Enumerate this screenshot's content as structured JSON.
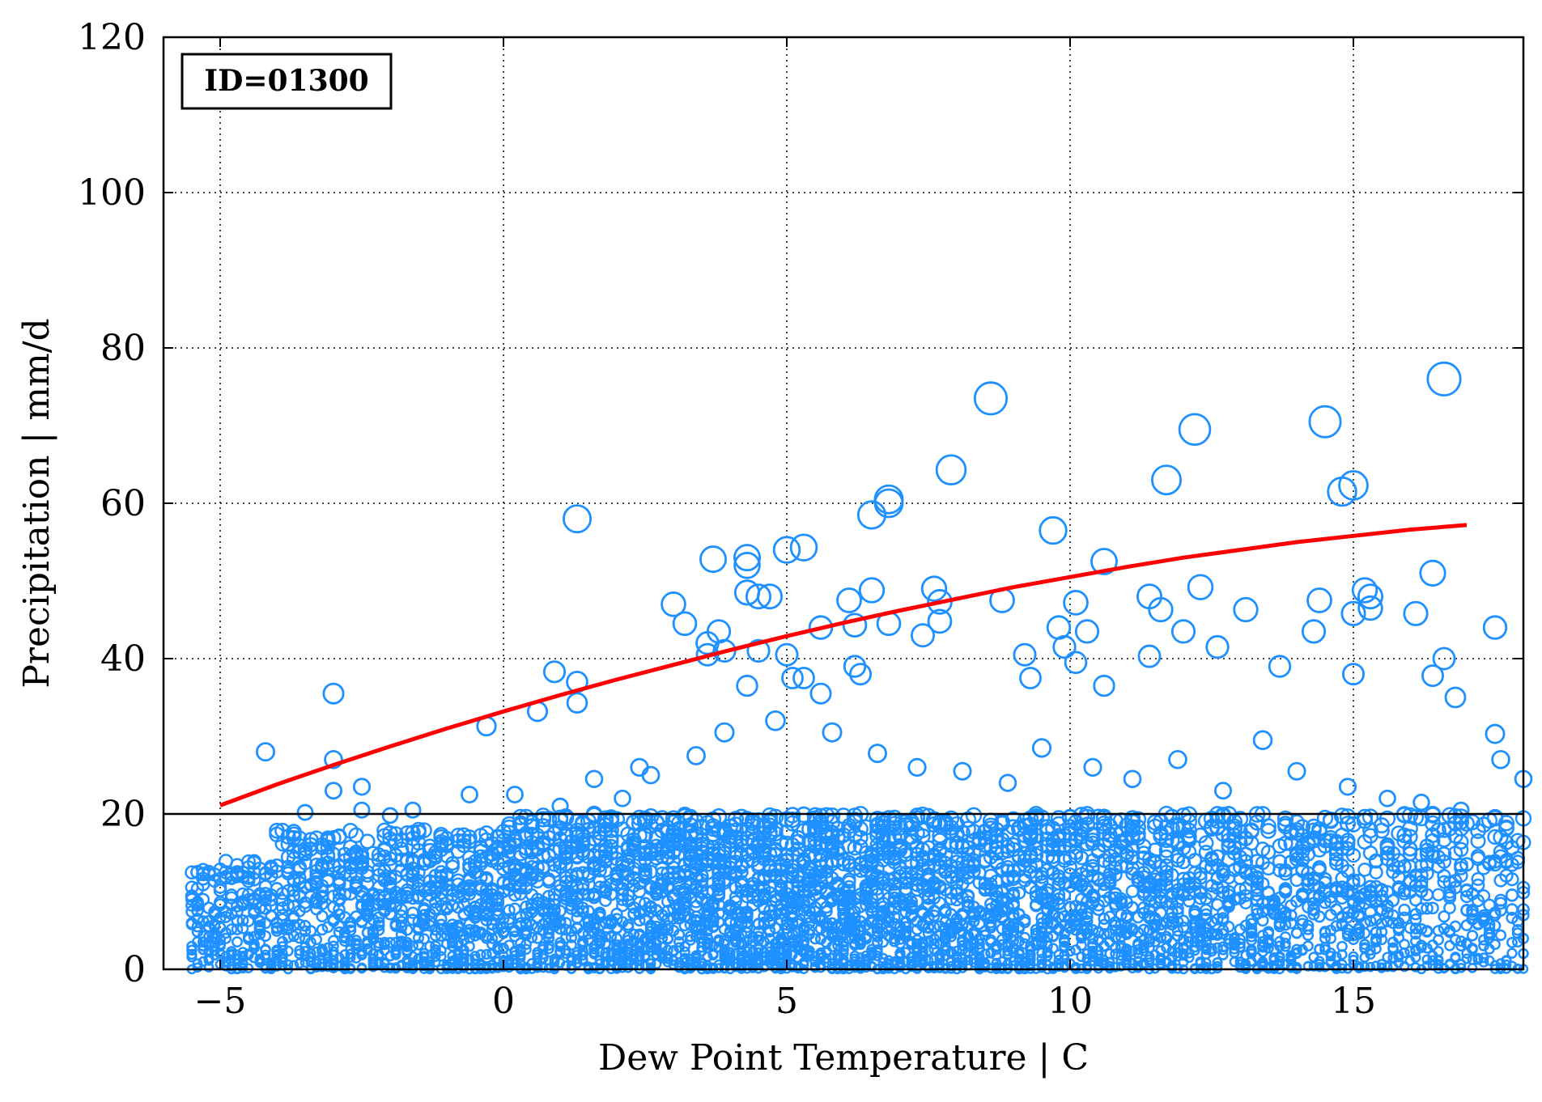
{
  "chart_data": {
    "type": "scatter",
    "title": "",
    "xlabel": "Dew Point Temperature | C",
    "ylabel": "Precipitation | mm/d",
    "xlim": [
      -6,
      18
    ],
    "ylim": [
      0,
      120
    ],
    "xticks": [
      -5,
      0,
      5,
      10,
      15
    ],
    "xtick_labels": [
      "−5",
      "0",
      "5",
      "10",
      "15"
    ],
    "yticks": [
      0,
      20,
      40,
      60,
      80,
      100,
      120
    ],
    "ytick_labels": [
      "0",
      "20",
      "40",
      "60",
      "80",
      "100",
      "120"
    ],
    "grid": true,
    "grid_style": "dotted",
    "annotation": "ID=01300",
    "annotation_position": "top-left",
    "threshold_line": {
      "y": 20,
      "color": "#000000"
    },
    "colors": {
      "points": "#1e90ff",
      "fit": "#ff0000",
      "threshold": "#000000"
    },
    "marker": "open-circle",
    "marker_size_scales_with_value": true,
    "series": [
      {
        "points": [
          [
            -3.0,
            35.5
          ],
          [
            -4.2,
            28.0
          ],
          [
            -3.0,
            27.0
          ],
          [
            -2.5,
            23.5
          ],
          [
            -3.0,
            23.0
          ],
          [
            -2.5,
            20.5
          ],
          [
            -3.5,
            20.2
          ],
          [
            -0.3,
            31.3
          ],
          [
            1.3,
            58.0
          ],
          [
            0.9,
            38.3
          ],
          [
            1.3,
            37.0
          ],
          [
            1.3,
            34.3
          ],
          [
            0.6,
            33.2
          ],
          [
            3.0,
            47.0
          ],
          [
            3.2,
            44.5
          ],
          [
            3.7,
            52.8
          ],
          [
            3.8,
            43.5
          ],
          [
            3.6,
            42.0
          ],
          [
            3.6,
            40.5
          ],
          [
            3.9,
            41.0
          ],
          [
            4.3,
            53.0
          ],
          [
            4.3,
            52.0
          ],
          [
            4.3,
            48.5
          ],
          [
            4.5,
            48.0
          ],
          [
            4.7,
            48.0
          ],
          [
            4.5,
            41.0
          ],
          [
            4.3,
            36.5
          ],
          [
            5.0,
            54.0
          ],
          [
            5.3,
            54.3
          ],
          [
            5.0,
            40.5
          ],
          [
            5.1,
            37.5
          ],
          [
            5.3,
            37.5
          ],
          [
            5.6,
            35.5
          ],
          [
            5.6,
            44.0
          ],
          [
            6.1,
            47.5
          ],
          [
            6.2,
            44.3
          ],
          [
            6.5,
            48.8
          ],
          [
            6.5,
            58.5
          ],
          [
            6.8,
            60.5
          ],
          [
            6.8,
            60.0
          ],
          [
            6.8,
            44.5
          ],
          [
            6.2,
            39.0
          ],
          [
            6.3,
            38.0
          ],
          [
            7.4,
            43.0
          ],
          [
            7.6,
            49.0
          ],
          [
            7.7,
            47.3
          ],
          [
            7.7,
            44.8
          ],
          [
            7.9,
            64.3
          ],
          [
            8.6,
            73.5
          ],
          [
            8.8,
            47.5
          ],
          [
            9.2,
            40.5
          ],
          [
            9.3,
            37.5
          ],
          [
            9.7,
            56.5
          ],
          [
            9.8,
            44.0
          ],
          [
            9.9,
            41.5
          ],
          [
            10.1,
            47.2
          ],
          [
            10.3,
            43.5
          ],
          [
            10.1,
            39.5
          ],
          [
            10.6,
            52.5
          ],
          [
            10.6,
            36.5
          ],
          [
            11.4,
            48.0
          ],
          [
            11.6,
            46.3
          ],
          [
            11.4,
            40.3
          ],
          [
            11.7,
            63.0
          ],
          [
            12.2,
            69.5
          ],
          [
            12.0,
            43.5
          ],
          [
            12.3,
            49.2
          ],
          [
            12.6,
            41.5
          ],
          [
            13.1,
            46.3
          ],
          [
            13.7,
            39.0
          ],
          [
            14.3,
            43.5
          ],
          [
            14.4,
            47.5
          ],
          [
            14.5,
            70.5
          ],
          [
            14.8,
            61.5
          ],
          [
            15.0,
            62.3
          ],
          [
            15.2,
            48.8
          ],
          [
            15.3,
            48.0
          ],
          [
            15.3,
            46.5
          ],
          [
            15.0,
            45.8
          ],
          [
            15.0,
            38.0
          ],
          [
            16.1,
            45.8
          ],
          [
            16.4,
            51.0
          ],
          [
            16.6,
            76.0
          ],
          [
            16.6,
            40.0
          ],
          [
            16.4,
            37.8
          ],
          [
            16.8,
            35.0
          ],
          [
            17.5,
            44.0
          ],
          [
            17.5,
            30.3
          ],
          [
            17.6,
            27.0
          ],
          [
            18.0,
            24.5
          ],
          [
            2.1,
            22.0
          ],
          [
            2.6,
            25.0
          ],
          [
            3.4,
            27.5
          ],
          [
            3.9,
            30.5
          ],
          [
            4.8,
            32.0
          ],
          [
            5.8,
            30.5
          ],
          [
            6.6,
            27.8
          ],
          [
            7.3,
            26.0
          ],
          [
            8.1,
            25.5
          ],
          [
            8.9,
            24.0
          ],
          [
            9.5,
            28.5
          ],
          [
            10.4,
            26.0
          ],
          [
            11.1,
            24.5
          ],
          [
            11.9,
            27.0
          ],
          [
            12.7,
            23.0
          ],
          [
            13.4,
            29.5
          ],
          [
            14.0,
            25.5
          ],
          [
            14.9,
            23.5
          ],
          [
            15.6,
            22.0
          ],
          [
            16.2,
            21.5
          ],
          [
            16.9,
            20.5
          ],
          [
            0.2,
            22.5
          ],
          [
            -0.6,
            22.5
          ],
          [
            1.6,
            24.5
          ],
          [
            2.4,
            26.0
          ],
          [
            1.0,
            21.0
          ],
          [
            -1.6,
            20.5
          ],
          [
            -2.0,
            19.8
          ]
        ]
      }
    ],
    "fit_curve": {
      "x": [
        -5,
        -4,
        -3,
        -2,
        -1,
        0,
        1,
        2,
        3,
        4,
        5,
        6,
        7,
        8,
        9,
        10,
        11,
        12,
        13,
        14,
        15,
        16,
        17
      ],
      "y": [
        21.1,
        23.8,
        26.3,
        28.7,
        31.0,
        33.2,
        35.3,
        37.3,
        39.2,
        41.1,
        42.9,
        44.6,
        46.2,
        47.7,
        49.2,
        50.5,
        51.8,
        53.0,
        54.0,
        55.0,
        55.8,
        56.6,
        57.2
      ]
    },
    "dense_band": {
      "x_range": [
        -5.5,
        18
      ],
      "note_values": "many small to medium open circles at each 0.1 C step with values from 0 up to about 20 mm/d"
    }
  }
}
